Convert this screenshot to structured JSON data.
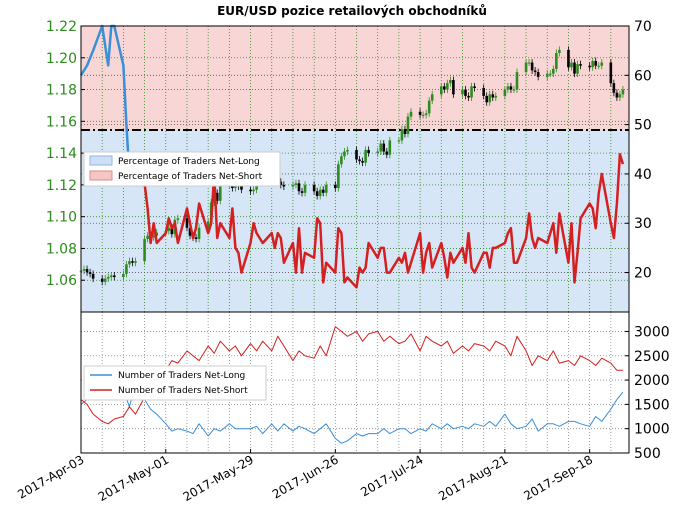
{
  "title": "EUR/USD pozice retailových obchodníků",
  "x_ticks": [
    "2017-Apr-03",
    "2017-May-01",
    "2017-May-29",
    "2017-Jun-26",
    "2017-Jul-24",
    "2017-Aug-21",
    "2017-Sep-18"
  ],
  "colors": {
    "price_axis": "#2e8b1e",
    "net_long": "#3a8fd8",
    "net_short": "#d42020",
    "candle_up": "#2e8b1e",
    "candle_down": "#000000",
    "long_fill": "#d6e6f7",
    "short_fill": "#f9d6d6",
    "grid_green": "#2e8b1e"
  },
  "chart_data": [
    {
      "type": "line",
      "title": "EUR/USD pozice retailových obchodníků",
      "x_range": [
        "2017-04-03",
        "2017-10-01"
      ],
      "ylim_left": [
        1.04,
        1.22
      ],
      "ylim_right": [
        12,
        70
      ],
      "y_ticks_left": [
        "1.06",
        "1.08",
        "1.10",
        "1.12",
        "1.14",
        "1.16",
        "1.18",
        "1.20",
        "1.22"
      ],
      "y_ticks_right": [
        "20",
        "30",
        "40",
        "50",
        "60",
        "70"
      ],
      "legend": {
        "position": "left-middle",
        "entries": [
          "Percentage of Traders Net-Long",
          "Percentage of Traders Net-Short"
        ]
      },
      "reference_line": {
        "value": 50,
        "style": "dash-dot"
      },
      "price_candles": {
        "x": [
          "2017-04-03",
          "2017-04-04",
          "2017-04-05",
          "2017-04-06",
          "2017-04-07",
          "2017-04-10",
          "2017-04-11",
          "2017-04-12",
          "2017-04-13",
          "2017-04-14",
          "2017-04-17",
          "2017-04-18",
          "2017-04-19",
          "2017-04-20",
          "2017-04-21",
          "2017-04-24",
          "2017-04-25",
          "2017-04-26",
          "2017-04-27",
          "2017-04-28",
          "2017-05-01",
          "2017-05-02",
          "2017-05-03",
          "2017-05-04",
          "2017-05-05",
          "2017-05-08",
          "2017-05-09",
          "2017-05-10",
          "2017-05-11",
          "2017-05-12",
          "2017-05-15",
          "2017-05-16",
          "2017-05-17",
          "2017-05-18",
          "2017-05-19",
          "2017-05-22",
          "2017-05-23",
          "2017-05-24",
          "2017-05-25",
          "2017-05-26",
          "2017-05-29",
          "2017-05-30",
          "2017-05-31",
          "2017-06-01",
          "2017-06-02",
          "2017-06-05",
          "2017-06-06",
          "2017-06-07",
          "2017-06-08",
          "2017-06-09",
          "2017-06-12",
          "2017-06-13",
          "2017-06-14",
          "2017-06-15",
          "2017-06-16",
          "2017-06-19",
          "2017-06-20",
          "2017-06-21",
          "2017-06-22",
          "2017-06-23",
          "2017-06-26",
          "2017-06-27",
          "2017-06-28",
          "2017-06-29",
          "2017-06-30",
          "2017-07-03",
          "2017-07-04",
          "2017-07-05",
          "2017-07-06",
          "2017-07-07",
          "2017-07-10",
          "2017-07-11",
          "2017-07-12",
          "2017-07-13",
          "2017-07-14",
          "2017-07-17",
          "2017-07-18",
          "2017-07-19",
          "2017-07-20",
          "2017-07-21",
          "2017-07-24",
          "2017-07-25",
          "2017-07-26",
          "2017-07-27",
          "2017-07-28",
          "2017-07-31",
          "2017-08-01",
          "2017-08-02",
          "2017-08-03",
          "2017-08-04",
          "2017-08-07",
          "2017-08-08",
          "2017-08-09",
          "2017-08-10",
          "2017-08-11",
          "2017-08-14",
          "2017-08-15",
          "2017-08-16",
          "2017-08-17",
          "2017-08-18",
          "2017-08-21",
          "2017-08-22",
          "2017-08-23",
          "2017-08-24",
          "2017-08-25",
          "2017-08-28",
          "2017-08-29",
          "2017-08-30",
          "2017-08-31",
          "2017-09-01",
          "2017-09-04",
          "2017-09-05",
          "2017-09-06",
          "2017-09-07",
          "2017-09-08",
          "2017-09-11",
          "2017-09-12",
          "2017-09-13",
          "2017-09-14",
          "2017-09-15",
          "2017-09-18",
          "2017-09-19",
          "2017-09-20",
          "2017-09-21",
          "2017-09-22",
          "2017-09-25",
          "2017-09-26",
          "2017-09-27",
          "2017-09-28",
          "2017-09-29"
        ],
        "close": [
          1.066,
          1.067,
          1.065,
          1.064,
          1.061,
          1.059,
          1.061,
          1.062,
          1.063,
          1.062,
          1.064,
          1.07,
          1.072,
          1.071,
          1.072,
          1.086,
          1.088,
          1.087,
          1.088,
          1.09,
          1.091,
          1.093,
          1.089,
          1.098,
          1.099,
          1.093,
          1.088,
          1.087,
          1.086,
          1.093,
          1.097,
          1.109,
          1.115,
          1.11,
          1.12,
          1.122,
          1.118,
          1.12,
          1.119,
          1.117,
          1.116,
          1.117,
          1.124,
          1.122,
          1.128,
          1.126,
          1.127,
          1.122,
          1.12,
          1.119,
          1.12,
          1.121,
          1.116,
          1.115,
          1.12,
          1.116,
          1.113,
          1.117,
          1.115,
          1.12,
          1.118,
          1.133,
          1.138,
          1.141,
          1.142,
          1.136,
          1.135,
          1.134,
          1.142,
          1.14,
          1.141,
          1.146,
          1.141,
          1.139,
          1.148,
          1.148,
          1.155,
          1.152,
          1.163,
          1.166,
          1.164,
          1.164,
          1.165,
          1.173,
          1.177,
          1.182,
          1.18,
          1.184,
          1.186,
          1.177,
          1.18,
          1.176,
          1.175,
          1.182,
          1.181,
          1.176,
          1.172,
          1.177,
          1.175,
          1.176,
          1.18,
          1.182,
          1.18,
          1.18,
          1.191,
          1.197,
          1.197,
          1.192,
          1.191,
          1.188,
          1.19,
          1.19,
          1.193,
          1.203,
          1.205,
          1.194,
          1.197,
          1.19,
          1.196,
          1.195,
          1.194,
          1.198,
          1.195,
          1.195,
          1.197,
          1.184,
          1.178,
          1.175,
          1.177,
          1.18
        ]
      },
      "series": [
        {
          "name": "Percentage of Traders Net-Long",
          "color": "#3a8fd8",
          "x": [
            "2017-04-03",
            "2017-04-05",
            "2017-04-07",
            "2017-04-10",
            "2017-04-11",
            "2017-04-12",
            "2017-04-13",
            "2017-04-14",
            "2017-04-17",
            "2017-04-18",
            "2017-04-19",
            "2017-04-20"
          ],
          "values": [
            60,
            62,
            65,
            70,
            66,
            62,
            70,
            70,
            62,
            50,
            40,
            38
          ]
        },
        {
          "name": "Percentage of Traders Net-Short",
          "color": "#d42020",
          "x": [
            "2017-04-19",
            "2017-04-20",
            "2017-04-21",
            "2017-04-24",
            "2017-04-25",
            "2017-04-26",
            "2017-04-27",
            "2017-04-28",
            "2017-05-01",
            "2017-05-02",
            "2017-05-03",
            "2017-05-04",
            "2017-05-05",
            "2017-05-08",
            "2017-05-09",
            "2017-05-10",
            "2017-05-11",
            "2017-05-12",
            "2017-05-15",
            "2017-05-16",
            "2017-05-17",
            "2017-05-18",
            "2017-05-19",
            "2017-05-22",
            "2017-05-23",
            "2017-05-24",
            "2017-05-25",
            "2017-05-26",
            "2017-05-29",
            "2017-05-30",
            "2017-05-31",
            "2017-06-01",
            "2017-06-02",
            "2017-06-05",
            "2017-06-06",
            "2017-06-07",
            "2017-06-08",
            "2017-06-09",
            "2017-06-12",
            "2017-06-13",
            "2017-06-14",
            "2017-06-15",
            "2017-06-16",
            "2017-06-19",
            "2017-06-20",
            "2017-06-21",
            "2017-06-22",
            "2017-06-23",
            "2017-06-26",
            "2017-06-27",
            "2017-06-28",
            "2017-06-29",
            "2017-06-30",
            "2017-07-03",
            "2017-07-04",
            "2017-07-05",
            "2017-07-06",
            "2017-07-07",
            "2017-07-10",
            "2017-07-11",
            "2017-07-12",
            "2017-07-13",
            "2017-07-14",
            "2017-07-17",
            "2017-07-18",
            "2017-07-19",
            "2017-07-20",
            "2017-07-21",
            "2017-07-24",
            "2017-07-25",
            "2017-07-26",
            "2017-07-27",
            "2017-07-28",
            "2017-07-31",
            "2017-08-01",
            "2017-08-02",
            "2017-08-03",
            "2017-08-04",
            "2017-08-07",
            "2017-08-08",
            "2017-08-09",
            "2017-08-10",
            "2017-08-11",
            "2017-08-14",
            "2017-08-15",
            "2017-08-16",
            "2017-08-17",
            "2017-08-18",
            "2017-08-21",
            "2017-08-22",
            "2017-08-23",
            "2017-08-24",
            "2017-08-25",
            "2017-08-28",
            "2017-08-29",
            "2017-08-30",
            "2017-08-31",
            "2017-09-01",
            "2017-09-04",
            "2017-09-05",
            "2017-09-06",
            "2017-09-07",
            "2017-09-08",
            "2017-09-11",
            "2017-09-12",
            "2017-09-13",
            "2017-09-14",
            "2017-09-15",
            "2017-09-18",
            "2017-09-19",
            "2017-09-20",
            "2017-09-21",
            "2017-09-22",
            "2017-09-25",
            "2017-09-26",
            "2017-09-27",
            "2017-09-28",
            "2017-09-29"
          ],
          "values": [
            40,
            38,
            40,
            38,
            33,
            26,
            30,
            26,
            28,
            31,
            29,
            30,
            26,
            33,
            30,
            27,
            29,
            34,
            28,
            30,
            40,
            27,
            30,
            27,
            33,
            25,
            24,
            20,
            26,
            30,
            28,
            27,
            26,
            28,
            25,
            28,
            27,
            22,
            26,
            20,
            29,
            20,
            24,
            23,
            31,
            30,
            18,
            22,
            20,
            29,
            28,
            18,
            19,
            17,
            21,
            20,
            21,
            26,
            23,
            25,
            25,
            20,
            20,
            23,
            22,
            24,
            20,
            22,
            28,
            20,
            24,
            26,
            21,
            26,
            23,
            19,
            24,
            22,
            25,
            22,
            28,
            21,
            20,
            24,
            24,
            21,
            25,
            25,
            26,
            28,
            29,
            22,
            22,
            27,
            32,
            27,
            25,
            27,
            26,
            28,
            30,
            24,
            32,
            22,
            30,
            18,
            24,
            31,
            34,
            33,
            29,
            36,
            40,
            30,
            27,
            34,
            44,
            42
          ]
        }
      ]
    },
    {
      "type": "line",
      "ylim": [
        500,
        3400
      ],
      "y_ticks": [
        "500",
        "1000",
        "1500",
        "2000",
        "2500",
        "3000"
      ],
      "legend": {
        "position": "left",
        "entries": [
          "Number of Traders Net-Long",
          "Number of Traders Net-Short"
        ]
      },
      "x": [
        "2017-04-03",
        "2017-04-05",
        "2017-04-07",
        "2017-04-10",
        "2017-04-12",
        "2017-04-14",
        "2017-04-17",
        "2017-04-19",
        "2017-04-21",
        "2017-04-24",
        "2017-04-26",
        "2017-04-28",
        "2017-05-01",
        "2017-05-03",
        "2017-05-05",
        "2017-05-08",
        "2017-05-10",
        "2017-05-12",
        "2017-05-15",
        "2017-05-17",
        "2017-05-19",
        "2017-05-22",
        "2017-05-24",
        "2017-05-26",
        "2017-05-29",
        "2017-05-31",
        "2017-06-02",
        "2017-06-05",
        "2017-06-07",
        "2017-06-09",
        "2017-06-12",
        "2017-06-14",
        "2017-06-16",
        "2017-06-19",
        "2017-06-21",
        "2017-06-23",
        "2017-06-26",
        "2017-06-28",
        "2017-06-30",
        "2017-07-03",
        "2017-07-05",
        "2017-07-07",
        "2017-07-10",
        "2017-07-12",
        "2017-07-14",
        "2017-07-17",
        "2017-07-19",
        "2017-07-21",
        "2017-07-24",
        "2017-07-26",
        "2017-07-28",
        "2017-07-31",
        "2017-08-02",
        "2017-08-04",
        "2017-08-07",
        "2017-08-09",
        "2017-08-11",
        "2017-08-14",
        "2017-08-16",
        "2017-08-18",
        "2017-08-21",
        "2017-08-23",
        "2017-08-25",
        "2017-08-28",
        "2017-08-30",
        "2017-09-01",
        "2017-09-04",
        "2017-09-06",
        "2017-09-08",
        "2017-09-11",
        "2017-09-13",
        "2017-09-15",
        "2017-09-18",
        "2017-09-20",
        "2017-09-22",
        "2017-09-25",
        "2017-09-27",
        "2017-09-29"
      ],
      "series": [
        {
          "name": "Number of Traders Net-Long",
          "color": "#3a8fd8",
          "values": [
            1500,
            1600,
            1850,
            1900,
            1950,
            1700,
            1800,
            1450,
            1900,
            1600,
            1400,
            1300,
            1100,
            950,
            1000,
            950,
            900,
            1100,
            850,
            1000,
            950,
            1100,
            1000,
            1000,
            1000,
            1050,
            900,
            1100,
            950,
            1100,
            950,
            1050,
            1000,
            900,
            1000,
            1100,
            800,
            700,
            750,
            900,
            850,
            900,
            900,
            1000,
            900,
            1000,
            1000,
            900,
            1000,
            950,
            1100,
            1000,
            1100,
            1000,
            1050,
            1000,
            1100,
            1050,
            1150,
            1050,
            1300,
            1100,
            1000,
            1050,
            1200,
            950,
            1100,
            1100,
            1050,
            1150,
            1150,
            1100,
            1050,
            1250,
            1150,
            1400,
            1600,
            1750
          ]
        },
        {
          "name": "Number of Traders Net-Short",
          "color": "#d42020",
          "values": [
            1600,
            1500,
            1300,
            1150,
            1100,
            1200,
            1250,
            1450,
            1300,
            1650,
            1800,
            2000,
            2200,
            2400,
            2350,
            2600,
            2500,
            2400,
            2700,
            2550,
            2800,
            2600,
            2700,
            2500,
            2750,
            2600,
            2800,
            2600,
            2900,
            2700,
            2400,
            2600,
            2500,
            2450,
            2700,
            2500,
            3100,
            3000,
            2900,
            3000,
            2800,
            2950,
            3000,
            2800,
            2900,
            2750,
            2800,
            2950,
            2600,
            2900,
            2800,
            2700,
            2800,
            2550,
            2700,
            2600,
            2750,
            2700,
            2600,
            2800,
            2700,
            2500,
            2900,
            2600,
            2300,
            2500,
            2400,
            2600,
            2350,
            2400,
            2300,
            2500,
            2400,
            2300,
            2450,
            2350,
            2200,
            2200
          ]
        }
      ]
    }
  ]
}
